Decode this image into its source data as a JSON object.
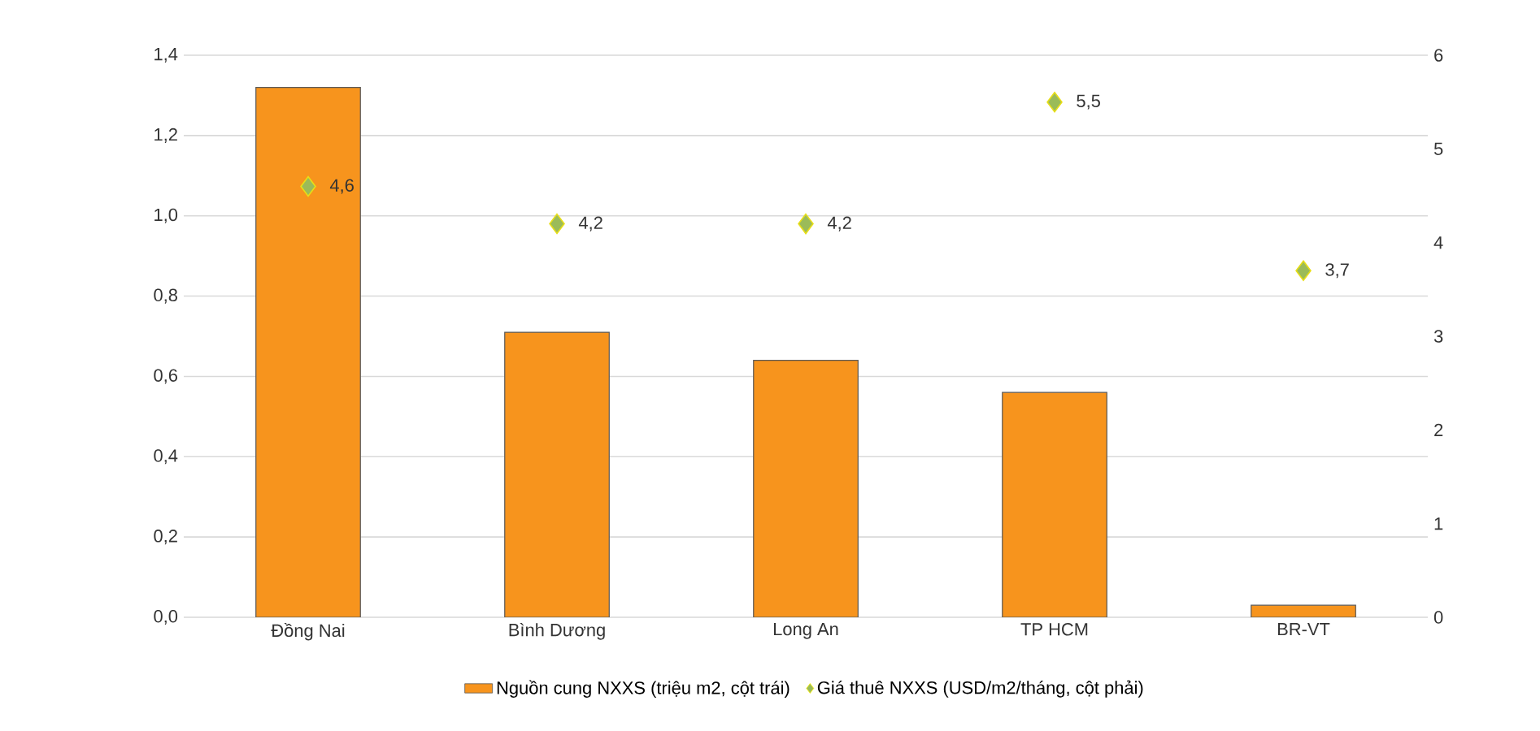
{
  "chart_data": {
    "type": "bar",
    "categories": [
      "Đồng Nai",
      "Bình Dương",
      "Long An",
      "TP HCM",
      "BR-VT"
    ],
    "series": [
      {
        "name": "Nguồn cung NXXS (triệu m2, cột trái)",
        "color": "#f7941d",
        "values": [
          1.32,
          0.71,
          0.64,
          0.56,
          0.03
        ]
      },
      {
        "name": "Giá thuê NXXS (USD/m2/tháng, cột phải)",
        "type": "scatter",
        "axis": "y2",
        "marker": "diamond",
        "color": "#9bbb59",
        "values": [
          4.6,
          4.2,
          4.2,
          5.5,
          3.7
        ],
        "value_labels": [
          "4,6",
          "4,2",
          "4,2",
          "5,5",
          "3,7"
        ]
      }
    ],
    "ylim": [
      0,
      1.4
    ],
    "yticks": [
      {
        "value": 0,
        "label": "0,0"
      },
      {
        "value": 0.2,
        "label": "0,2"
      },
      {
        "value": 0.4,
        "label": "0,4"
      },
      {
        "value": 0.6,
        "label": "0,6"
      },
      {
        "value": 0.8,
        "label": "0,8"
      },
      {
        "value": 1.0,
        "label": "1,0"
      },
      {
        "value": 1.2,
        "label": "1,2"
      },
      {
        "value": 1.4,
        "label": "1,4"
      }
    ],
    "y2lim": [
      0,
      6
    ],
    "y2ticks": [
      0,
      1,
      2,
      3,
      4,
      5,
      6
    ],
    "grid": "y",
    "legend": "bottom"
  }
}
